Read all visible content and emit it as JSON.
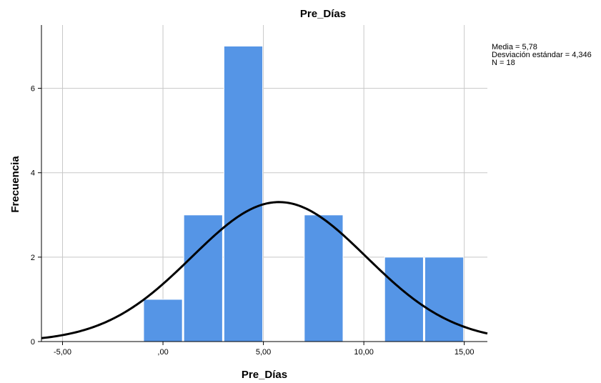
{
  "chart_data": {
    "type": "histogram",
    "title": "Pre_Días",
    "xlabel": "Pre_Días",
    "ylabel": "Frecuencia",
    "xlim": [
      -6.05,
      16.15
    ],
    "ylim": [
      0,
      7.5
    ],
    "x_ticks": [
      {
        "value": -5,
        "label": "-5,00"
      },
      {
        "value": 0,
        "label": ",00"
      },
      {
        "value": 5,
        "label": "5,00"
      },
      {
        "value": 10,
        "label": "10,00"
      },
      {
        "value": 15,
        "label": "15,00"
      }
    ],
    "y_ticks": [
      {
        "value": 0,
        "label": "0"
      },
      {
        "value": 2,
        "label": "2"
      },
      {
        "value": 4,
        "label": "4"
      },
      {
        "value": 6,
        "label": "6"
      }
    ],
    "grid": true,
    "bar_color": "#5595e6",
    "curve_color": "#000000",
    "bins": [
      {
        "start": -1,
        "end": 1,
        "count": 1
      },
      {
        "start": 1,
        "end": 3,
        "count": 3
      },
      {
        "start": 3,
        "end": 5,
        "count": 7
      },
      {
        "start": 5,
        "end": 7,
        "count": 0
      },
      {
        "start": 7,
        "end": 9,
        "count": 3
      },
      {
        "start": 9,
        "end": 11,
        "count": 0
      },
      {
        "start": 11,
        "end": 13,
        "count": 2
      },
      {
        "start": 13,
        "end": 15,
        "count": 2
      }
    ],
    "normal_curve": {
      "mean": 5.78,
      "sd": 4.346,
      "n": 18,
      "bin_width": 2
    },
    "stats": {
      "media": "Media = 5,78",
      "desviacion": "Desviación estándar = 4,346",
      "n": "N = 18"
    }
  }
}
